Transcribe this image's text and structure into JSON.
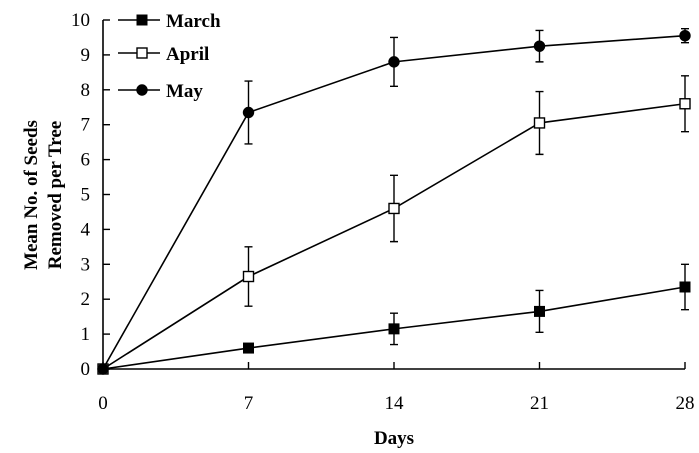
{
  "chart_data": {
    "type": "line",
    "xlabel": "Days",
    "ylabel_lines": [
      "Mean No. of Seeds",
      "Removed per Tree"
    ],
    "x": [
      0,
      7,
      14,
      21,
      28
    ],
    "xlim": [
      0,
      28
    ],
    "ylim": [
      0,
      10
    ],
    "xticks": [
      "0",
      "7",
      "14",
      "21",
      "28"
    ],
    "yticks": [
      "0",
      "1",
      "2",
      "3",
      "4",
      "5",
      "6",
      "7",
      "8",
      "9",
      "10"
    ],
    "grid": false,
    "legend_position": "top-left",
    "series": [
      {
        "name": "March",
        "marker": "filled-square",
        "values": [
          0,
          0.6,
          1.15,
          1.65,
          2.35
        ],
        "errors": [
          0,
          0.1,
          0.45,
          0.6,
          0.65
        ]
      },
      {
        "name": "April",
        "marker": "open-square",
        "values": [
          0,
          2.65,
          4.6,
          7.05,
          7.6
        ],
        "errors": [
          0,
          0.85,
          0.95,
          0.9,
          0.8
        ]
      },
      {
        "name": "May",
        "marker": "filled-circle",
        "values": [
          0,
          7.35,
          8.8,
          9.25,
          9.55
        ],
        "errors": [
          0,
          0.9,
          0.7,
          0.45,
          0.2
        ]
      }
    ]
  }
}
